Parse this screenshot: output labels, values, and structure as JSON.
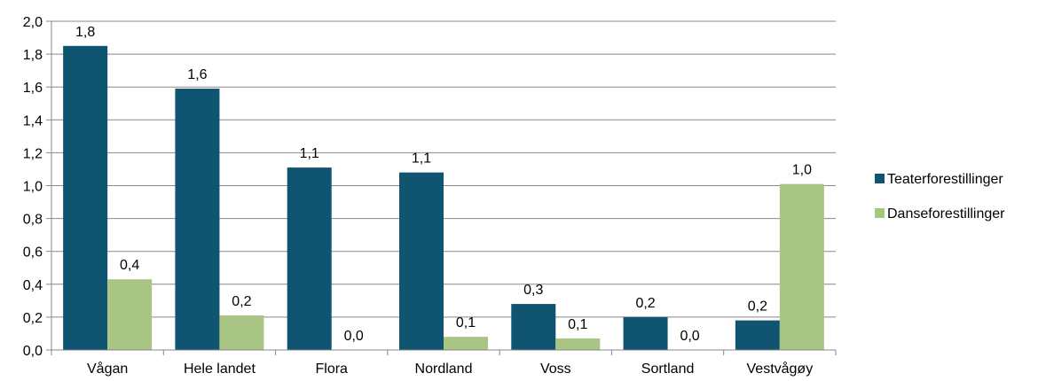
{
  "chart_data": {
    "type": "bar",
    "categories": [
      "Vågan",
      "Hele landet",
      "Flora",
      "Nordland",
      "Voss",
      "Sortland",
      "Vestvågøy"
    ],
    "series": [
      {
        "name": "Teaterforestillinger",
        "color": "#0F5470",
        "values": [
          1.85,
          1.59,
          1.11,
          1.08,
          0.28,
          0.2,
          0.18
        ],
        "labels": [
          "1,8",
          "1,6",
          "1,1",
          "1,1",
          "0,3",
          "0,2",
          "0,2"
        ]
      },
      {
        "name": "Danseforestillinger",
        "color": "#A9C583",
        "values": [
          0.43,
          0.21,
          0.0,
          0.08,
          0.07,
          0.0,
          1.01
        ],
        "labels": [
          "0,4",
          "0,2",
          "0,0",
          "0,1",
          "0,1",
          "0,0",
          "1,0"
        ]
      }
    ],
    "ylim": [
      0,
      2.0
    ],
    "yticks": [
      0,
      0.2,
      0.4,
      0.6,
      0.8,
      1.0,
      1.2,
      1.4,
      1.6,
      1.8,
      2.0
    ],
    "ytick_labels": [
      "0,0",
      "0,2",
      "0,4",
      "0,6",
      "0,8",
      "1,0",
      "1,2",
      "1,4",
      "1,6",
      "1,8",
      "2,0"
    ],
    "grid": true,
    "legend_position": "right",
    "title": "",
    "xlabel": "",
    "ylabel": ""
  }
}
